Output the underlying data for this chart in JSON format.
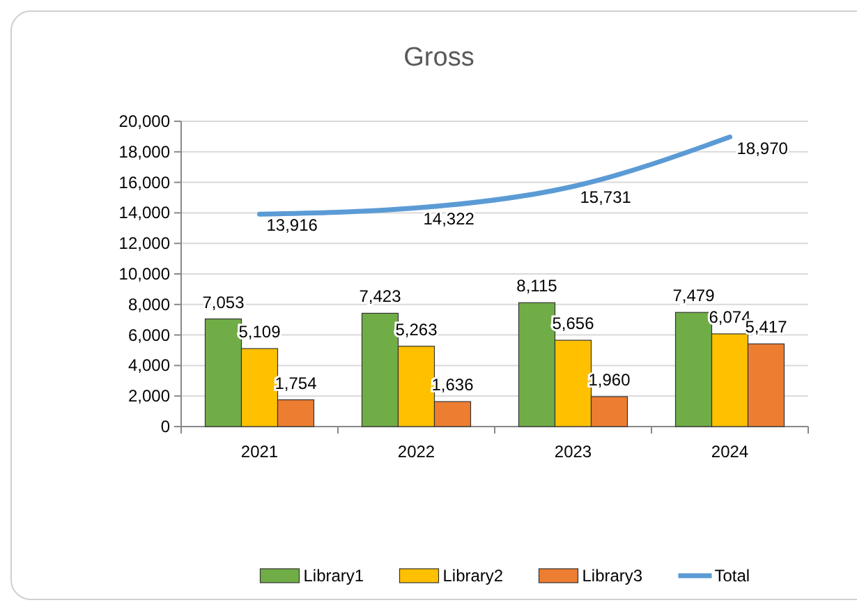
{
  "chart_data": {
    "type": "bar",
    "title": "Gross",
    "categories": [
      "2021",
      "2022",
      "2023",
      "2024"
    ],
    "series": [
      {
        "name": "Library1",
        "color": "#70ad47",
        "values": [
          7053,
          7423,
          8115,
          7479
        ],
        "value_labels": [
          "7,053",
          "7,423",
          "8,115",
          "7,479"
        ]
      },
      {
        "name": "Library2",
        "color": "#ffc000",
        "values": [
          5109,
          5263,
          5656,
          6074
        ],
        "value_labels": [
          "5,109",
          "5,263",
          "5,656",
          "6,074"
        ]
      },
      {
        "name": "Library3",
        "color": "#ed7d31",
        "values": [
          1754,
          1636,
          1960,
          5417
        ],
        "value_labels": [
          "1,754",
          "1,636",
          "1,960",
          "5,417"
        ]
      },
      {
        "name": "Total",
        "type": "line",
        "color": "#5b9bd5",
        "values": [
          13916,
          14322,
          15731,
          18970
        ],
        "value_labels": [
          "13,916",
          "14,322",
          "15,731",
          "18,970"
        ]
      }
    ],
    "ylim": [
      0,
      20000
    ],
    "yticks": [
      {
        "value": 0,
        "label": "0"
      },
      {
        "value": 2000,
        "label": "2,000"
      },
      {
        "value": 4000,
        "label": "4,000"
      },
      {
        "value": 6000,
        "label": "6,000"
      },
      {
        "value": 8000,
        "label": "8,000"
      },
      {
        "value": 10000,
        "label": "10,000"
      },
      {
        "value": 12000,
        "label": "12,000"
      },
      {
        "value": 14000,
        "label": "14,000"
      },
      {
        "value": 16000,
        "label": "16,000"
      },
      {
        "value": 18000,
        "label": "18,000"
      },
      {
        "value": 20000,
        "label": "20,000"
      }
    ],
    "grid": "y",
    "legend": "bottom"
  }
}
